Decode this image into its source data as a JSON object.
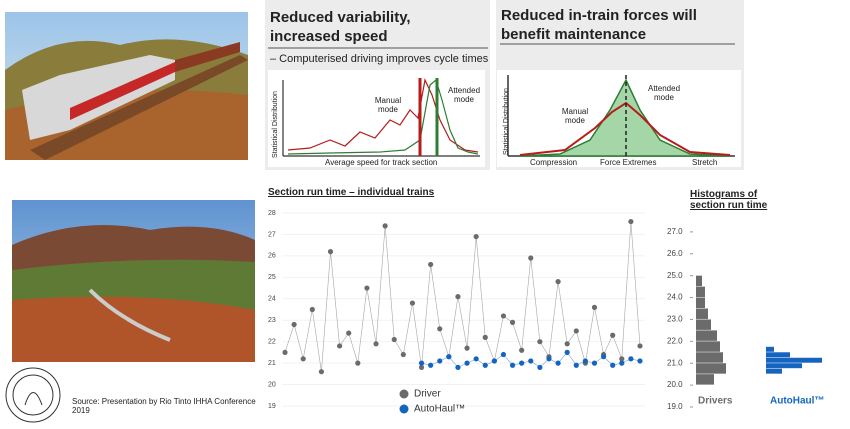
{
  "panels": [
    {
      "title": "Reduced variability, increased speed",
      "bullet": "– Computerised driving improves cycle times",
      "y_label": "Statistical Distribution",
      "manual_label": "Manual mode",
      "attended_label": "Attended mode",
      "x_label": "Average speed for track section"
    },
    {
      "title": "Reduced in-train forces will benefit maintenance",
      "y_label": "Statistical Distribution",
      "manual_label": "Manual mode",
      "attended_label": "Attended mode",
      "x_labels": [
        "Compression",
        "Force Extremes",
        "Stretch"
      ]
    }
  ],
  "source": "Source: Presentation by Rio Tinto IHHA Conference 2019",
  "chart_data": [
    {
      "type": "scatter",
      "title": "Section run time – individual trains",
      "ylim": [
        19,
        28
      ],
      "yticks": [
        19,
        20,
        21,
        22,
        23,
        24,
        25,
        26,
        27,
        28
      ],
      "series": [
        {
          "name": "Driver",
          "color": "#6b6b6b",
          "values": [
            21.5,
            22.8,
            21.2,
            23.5,
            20.6,
            26.2,
            21.8,
            22.4,
            21.0,
            24.5,
            21.9,
            27.4,
            22.1,
            21.4,
            23.8,
            20.8,
            25.6,
            22.6,
            21.3,
            24.1,
            21.7,
            26.9,
            22.2,
            21.1,
            23.2,
            22.9,
            21.6,
            25.9,
            22.0,
            21.3,
            24.8,
            21.9,
            22.5,
            21.0,
            23.6,
            21.4,
            22.3,
            21.2,
            27.6,
            21.8
          ]
        },
        {
          "name": "AutoHaul™",
          "color": "#1565c0",
          "values": [
            null,
            null,
            null,
            null,
            null,
            null,
            null,
            null,
            null,
            null,
            null,
            null,
            null,
            null,
            null,
            21.0,
            20.9,
            21.1,
            21.3,
            20.8,
            21.0,
            21.2,
            20.9,
            21.1,
            21.4,
            20.9,
            21.0,
            21.1,
            20.8,
            21.2,
            21.0,
            21.5,
            20.9,
            21.1,
            21.0,
            21.3,
            20.9,
            21.0,
            21.2,
            21.1
          ]
        }
      ]
    },
    {
      "type": "histogram",
      "title": "Histograms of section run time",
      "ylim": [
        19,
        28
      ],
      "yticks": [
        {
          "value": 19,
          "label": "19.0"
        },
        {
          "value": 20,
          "label": "20.0"
        },
        {
          "value": 21,
          "label": "21.0"
        },
        {
          "value": 22,
          "label": "22.0"
        },
        {
          "value": 23,
          "label": "23.0"
        },
        {
          "value": 24,
          "label": "24.0"
        },
        {
          "value": 25,
          "label": "25.0"
        },
        {
          "value": 26,
          "label": "26.0"
        },
        {
          "value": 27,
          "label": "27.0"
        }
      ],
      "series": [
        {
          "name": "Drivers",
          "color": "#6b6b6b",
          "bins": [
            20,
            20.5,
            21,
            21.5,
            22,
            22.5,
            23,
            23.5,
            24,
            24.5,
            25
          ],
          "values": [
            6,
            10,
            9,
            8,
            7,
            5,
            4,
            3,
            3,
            2
          ]
        },
        {
          "name": "AutoHaul™",
          "color": "#1565c0",
          "bins": [
            20.5,
            20.75,
            21,
            21.25,
            21.5,
            21.75
          ],
          "values": [
            4,
            9,
            14,
            6,
            2
          ]
        }
      ]
    }
  ]
}
